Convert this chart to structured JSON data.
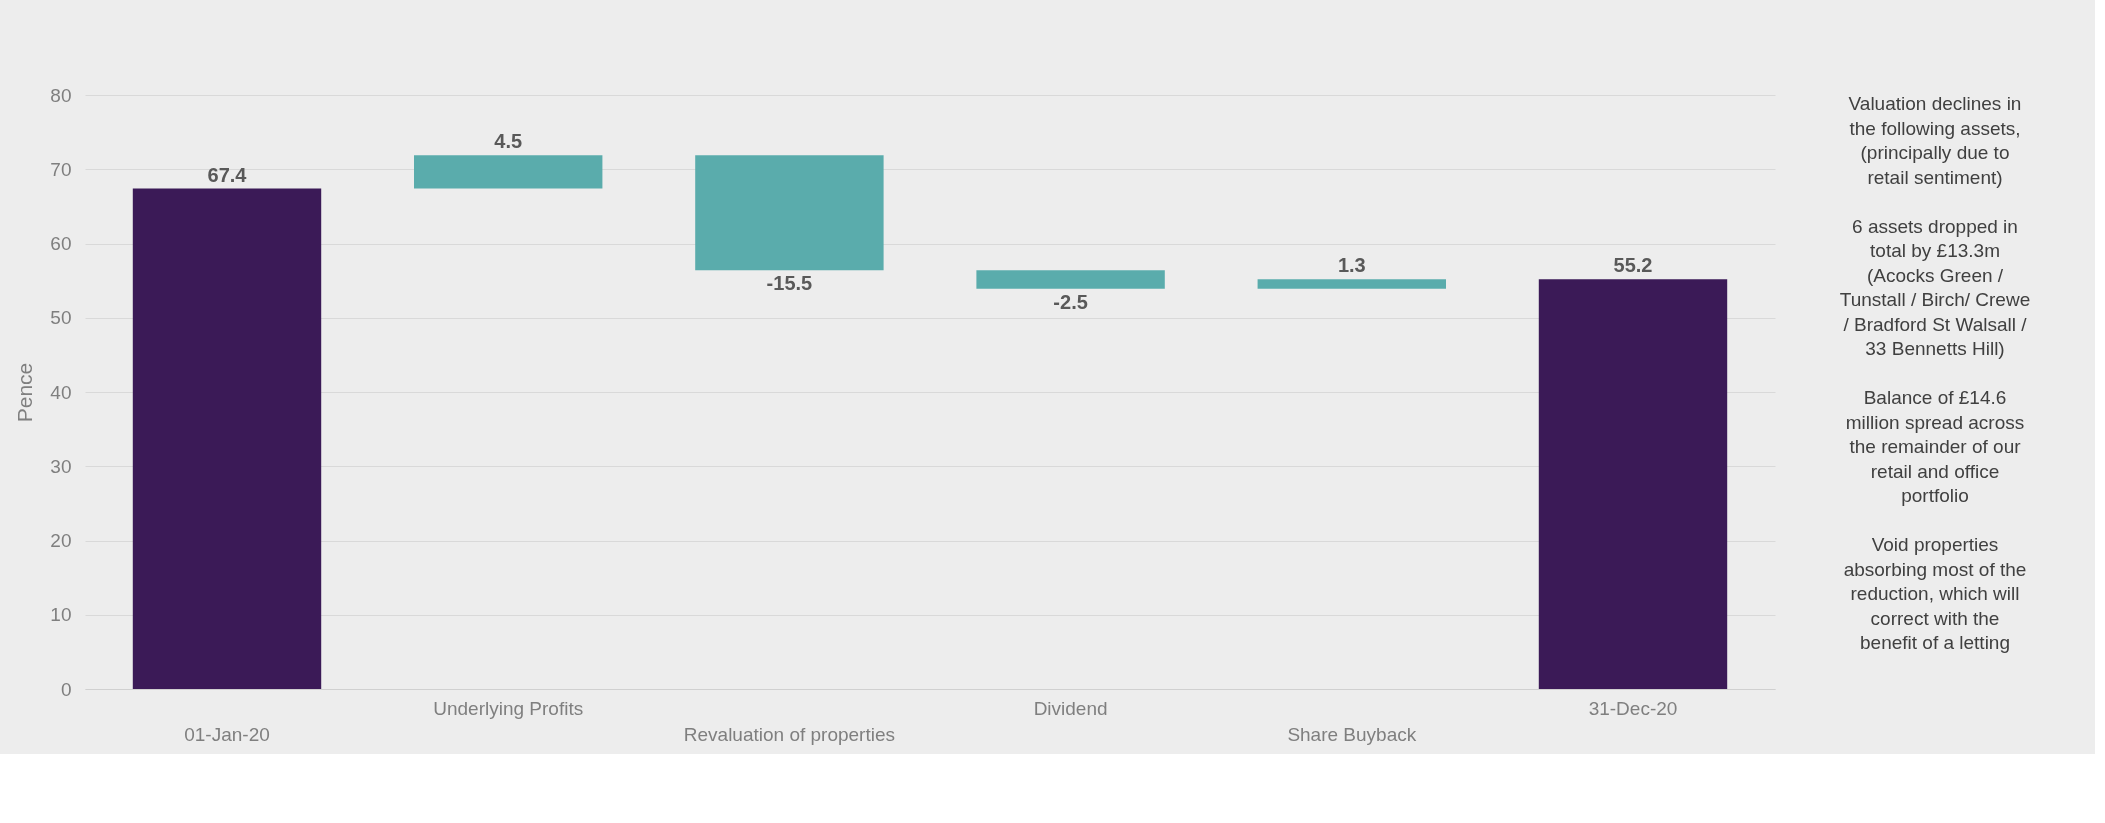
{
  "chart_data": {
    "type": "bar",
    "ylabel": "Pence",
    "categories": [
      "01-Jan-20",
      "Underlying Profits",
      "Revaluation of properties",
      "Dividend",
      "Share Buyback",
      "31-Dec-20"
    ],
    "values": [
      67.4,
      4.5,
      -15.5,
      -2.5,
      1.3,
      55.2
    ],
    "base": [
      0,
      67.4,
      71.9,
      56.4,
      53.9,
      0
    ],
    "colors": [
      "#3b1a57",
      "#5aacac",
      "#5aacac",
      "#5aacac",
      "#5aacac",
      "#3b1a57"
    ],
    "ylim": [
      0,
      80
    ],
    "yticks": [
      0,
      10,
      20,
      30,
      40,
      50,
      60,
      70,
      80
    ],
    "grid": "y",
    "data_labels": true,
    "annotations": [
      "Valuation declines in\nthe following assets,\n(principally due to\nretail sentiment)",
      "6 assets dropped in\ntotal by £13.3m\n(Acocks Green /\nTunstall / Birch/ Crewe\n/ Bradford St Walsall /\n33 Bennetts Hill)",
      "Balance of £14.6\nmillion spread across\nthe remainder of our\nretail and office\nportfolio",
      "Void properties\nabsorbing most of the\nreduction, which will\ncorrect with the\nbenefit of a letting"
    ]
  }
}
